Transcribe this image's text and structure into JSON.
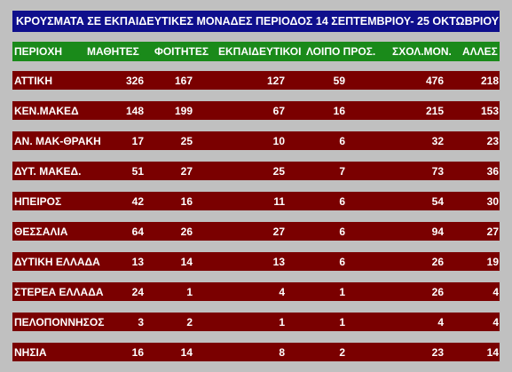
{
  "title": "ΚΡΟΥΣΜΑΤΑ ΣΕ ΕΚΠΑΙΔΕΥΤΙΚΕΣ ΜΟΝΑΔΕΣ ΠΕΡΙΟΔΟΣ 14 ΣΕΠΤΕΜΒΡΙΟΥ-  25 ΟΚΤΩΒΡΙΟΥ",
  "headers": [
    "ΠΕΡΙΟΧΗ",
    "ΜΑΘΗΤΕΣ",
    "ΦΟΙΤΗΤΕΣ",
    "ΕΚΠΑΙΔΕΥΤΙΚΟΙ",
    "ΛΟΙΠΟ ΠΡΟΣ.",
    "ΣΧΟΛ.ΜΟΝ.",
    "ΑΛΛΕΣ"
  ],
  "rows": [
    [
      "ΑΤΤΙΚΗ",
      "326",
      "167",
      "127",
      "59",
      "476",
      "218"
    ],
    [
      "ΚΕΝ.ΜΑΚΕΔ",
      "148",
      "199",
      "67",
      "16",
      "215",
      "153"
    ],
    [
      "ΑΝ. ΜΑΚ-ΘΡΑΚΗ",
      "17",
      "25",
      "10",
      "6",
      "32",
      "23"
    ],
    [
      "ΔΥΤ. ΜΑΚΕΔ.",
      "51",
      "27",
      "25",
      "7",
      "73",
      "36"
    ],
    [
      "ΗΠΕΙΡΟΣ",
      "42",
      "16",
      "11",
      "6",
      "54",
      "30"
    ],
    [
      "ΘΕΣΣΑΛΙΑ",
      "64",
      "26",
      "27",
      "6",
      "94",
      "27"
    ],
    [
      "ΔΥΤΙΚΗ ΕΛΛΑΔΑ",
      "13",
      "14",
      "13",
      "6",
      "26",
      "19"
    ],
    [
      "ΣΤΕΡΕΑ ΕΛΛΑΔΑ",
      "24",
      "1",
      "4",
      "1",
      "26",
      "4"
    ],
    [
      "ΠΕΛΟΠΟΝΝΗΣΟΣ",
      "3",
      "2",
      "1",
      "1",
      "4",
      "4"
    ],
    [
      "ΝΗΣΙΑ",
      "16",
      "14",
      "8",
      "2",
      "23",
      "14"
    ]
  ],
  "colors": {
    "background": "#c0c0c0",
    "title_bg": "#0f0f8c",
    "header_bg": "#1a8a1a",
    "row_bg": "#7a0000",
    "text": "#ffffff"
  }
}
